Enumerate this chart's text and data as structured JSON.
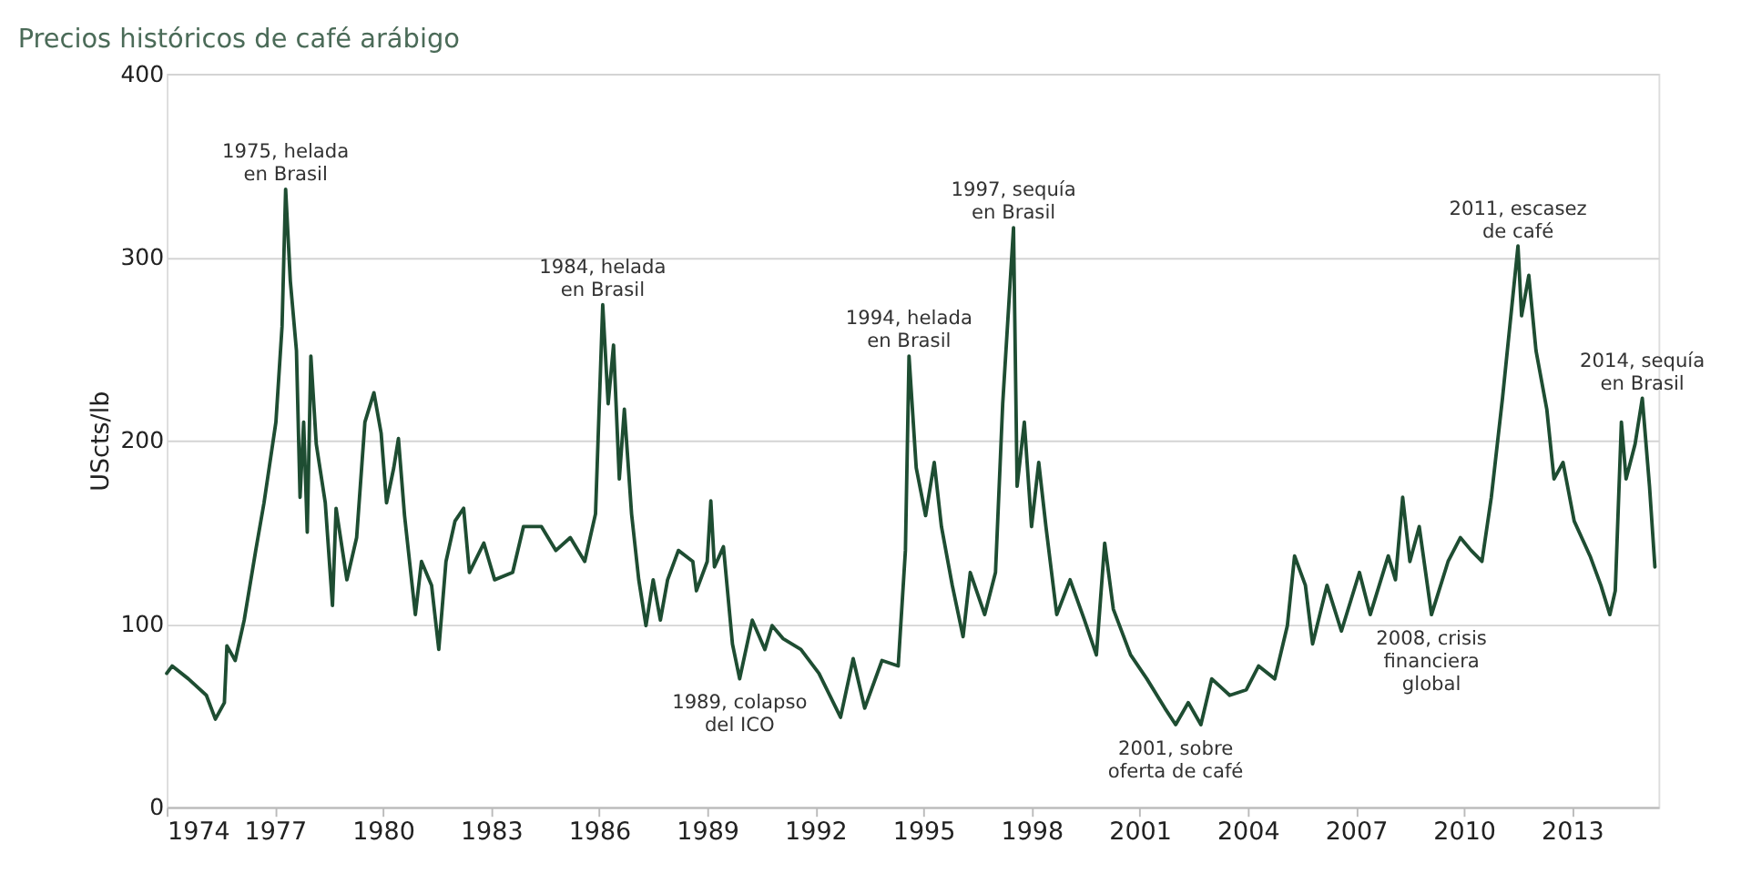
{
  "chart_data": {
    "type": "line",
    "title": "Precios históricos de café arábigo",
    "ylabel": "UScts/lb",
    "xlim": [
      1974,
      2015.4
    ],
    "xticks": [
      1974,
      1977,
      1980,
      1983,
      1986,
      1989,
      1992,
      1995,
      1998,
      2001,
      2004,
      2007,
      2010,
      2013
    ],
    "ylim": [
      0,
      400
    ],
    "yticks": [
      0,
      100,
      200,
      300,
      400
    ],
    "grid": "y",
    "legend": false,
    "marker": "none",
    "line_style": "solid",
    "series": [
      {
        "color": "#1e4d32",
        "x": [
          1974.0,
          1974.15,
          1974.6,
          1975.1,
          1975.35,
          1975.6,
          1975.67,
          1975.9,
          1976.15,
          1976.47,
          1976.7,
          1977.03,
          1977.2,
          1977.3,
          1977.43,
          1977.6,
          1977.7,
          1977.8,
          1977.9,
          1978.0,
          1978.15,
          1978.4,
          1978.6,
          1978.7,
          1979.0,
          1979.27,
          1979.5,
          1979.75,
          1979.95,
          1980.1,
          1980.3,
          1980.43,
          1980.6,
          1980.9,
          1981.07,
          1981.35,
          1981.55,
          1981.75,
          1982.0,
          1982.24,
          1982.4,
          1982.8,
          1983.1,
          1983.6,
          1983.9,
          1984.4,
          1984.8,
          1985.2,
          1985.6,
          1985.9,
          1986.1,
          1986.25,
          1986.4,
          1986.56,
          1986.7,
          1986.9,
          1987.1,
          1987.3,
          1987.5,
          1987.7,
          1987.9,
          1988.2,
          1988.6,
          1988.7,
          1989.0,
          1989.1,
          1989.2,
          1989.45,
          1989.7,
          1989.9,
          1990.25,
          1990.6,
          1990.8,
          1991.1,
          1991.6,
          1992.1,
          1992.7,
          1993.05,
          1993.37,
          1993.85,
          1994.3,
          1994.5,
          1994.6,
          1994.8,
          1995.06,
          1995.3,
          1995.5,
          1995.8,
          1996.1,
          1996.3,
          1996.7,
          1997.0,
          1997.2,
          1997.5,
          1997.6,
          1997.8,
          1998.0,
          1998.2,
          1998.4,
          1998.7,
          1999.07,
          1999.47,
          1999.8,
          2000.03,
          2000.27,
          2000.75,
          2001.2,
          2001.7,
          2002.0,
          2002.35,
          2002.7,
          2003.0,
          2003.5,
          2003.96,
          2004.3,
          2004.75,
          2005.1,
          2005.3,
          2005.6,
          2005.8,
          2006.2,
          2006.6,
          2007.1,
          2007.4,
          2007.9,
          2008.1,
          2008.3,
          2008.5,
          2008.76,
          2009.1,
          2009.56,
          2009.9,
          2010.2,
          2010.5,
          2010.76,
          2011.07,
          2011.5,
          2011.6,
          2011.8,
          2012.0,
          2012.3,
          2012.5,
          2012.75,
          2013.06,
          2013.5,
          2013.8,
          2014.05,
          2014.2,
          2014.37,
          2014.5,
          2014.75,
          2014.95,
          2015.15,
          2015.3
        ],
        "values": [
          73,
          77,
          70,
          61,
          48,
          57,
          88,
          80,
          102,
          140,
          166,
          210,
          262,
          337,
          287,
          249,
          169,
          210,
          150,
          246,
          198,
          166,
          110,
          163,
          124,
          147,
          210,
          226,
          204,
          166,
          185,
          201,
          159,
          105,
          134,
          121,
          86,
          134,
          156,
          163,
          128,
          144,
          124,
          128,
          153,
          153,
          140,
          147,
          134,
          160,
          274,
          220,
          252,
          179,
          217,
          160,
          124,
          99,
          124,
          102,
          124,
          140,
          134,
          118,
          134,
          167,
          131,
          142,
          89,
          70,
          102,
          86,
          99,
          92,
          86,
          73,
          49,
          81,
          54,
          80,
          77,
          140,
          246,
          185,
          159,
          188,
          153,
          121,
          93,
          128,
          105,
          128,
          220,
          316,
          175,
          210,
          153,
          188,
          153,
          105,
          124,
          102,
          83,
          144,
          108,
          83,
          70,
          54,
          45,
          57,
          45,
          70,
          61,
          64,
          77,
          70,
          99,
          137,
          121,
          89,
          121,
          96,
          128,
          105,
          137,
          124,
          169,
          134,
          153,
          105,
          134,
          147,
          140,
          134,
          169,
          223,
          306,
          268,
          290,
          249,
          217,
          179,
          188,
          156,
          137,
          121,
          105,
          118,
          210,
          179,
          198,
          223,
          175,
          131
        ]
      }
    ],
    "annotations": [
      {
        "text": "1975, helada\nen Brasil",
        "x": 1977.3,
        "y": 337
      },
      {
        "text": "1984, helada\nen Brasil",
        "x": 1986.1,
        "y": 274
      },
      {
        "text": "1989, colapso\ndel ICO",
        "x": 1989.9,
        "y": 70
      },
      {
        "text": "1994, helada\nen Brasil",
        "x": 1994.6,
        "y": 246
      },
      {
        "text": "1997, sequía\nen Brasil",
        "x": 1997.5,
        "y": 316
      },
      {
        "text": "2001, sobre\noferta de café",
        "x": 2002.0,
        "y": 45
      },
      {
        "text": "2008, crisis\nfinanciera\nglobal",
        "x": 2009.1,
        "y": 105
      },
      {
        "text": "2011, escasez\nde café",
        "x": 2011.5,
        "y": 306
      },
      {
        "text": "2014, sequía\nen Brasil",
        "x": 2014.95,
        "y": 223
      }
    ]
  }
}
